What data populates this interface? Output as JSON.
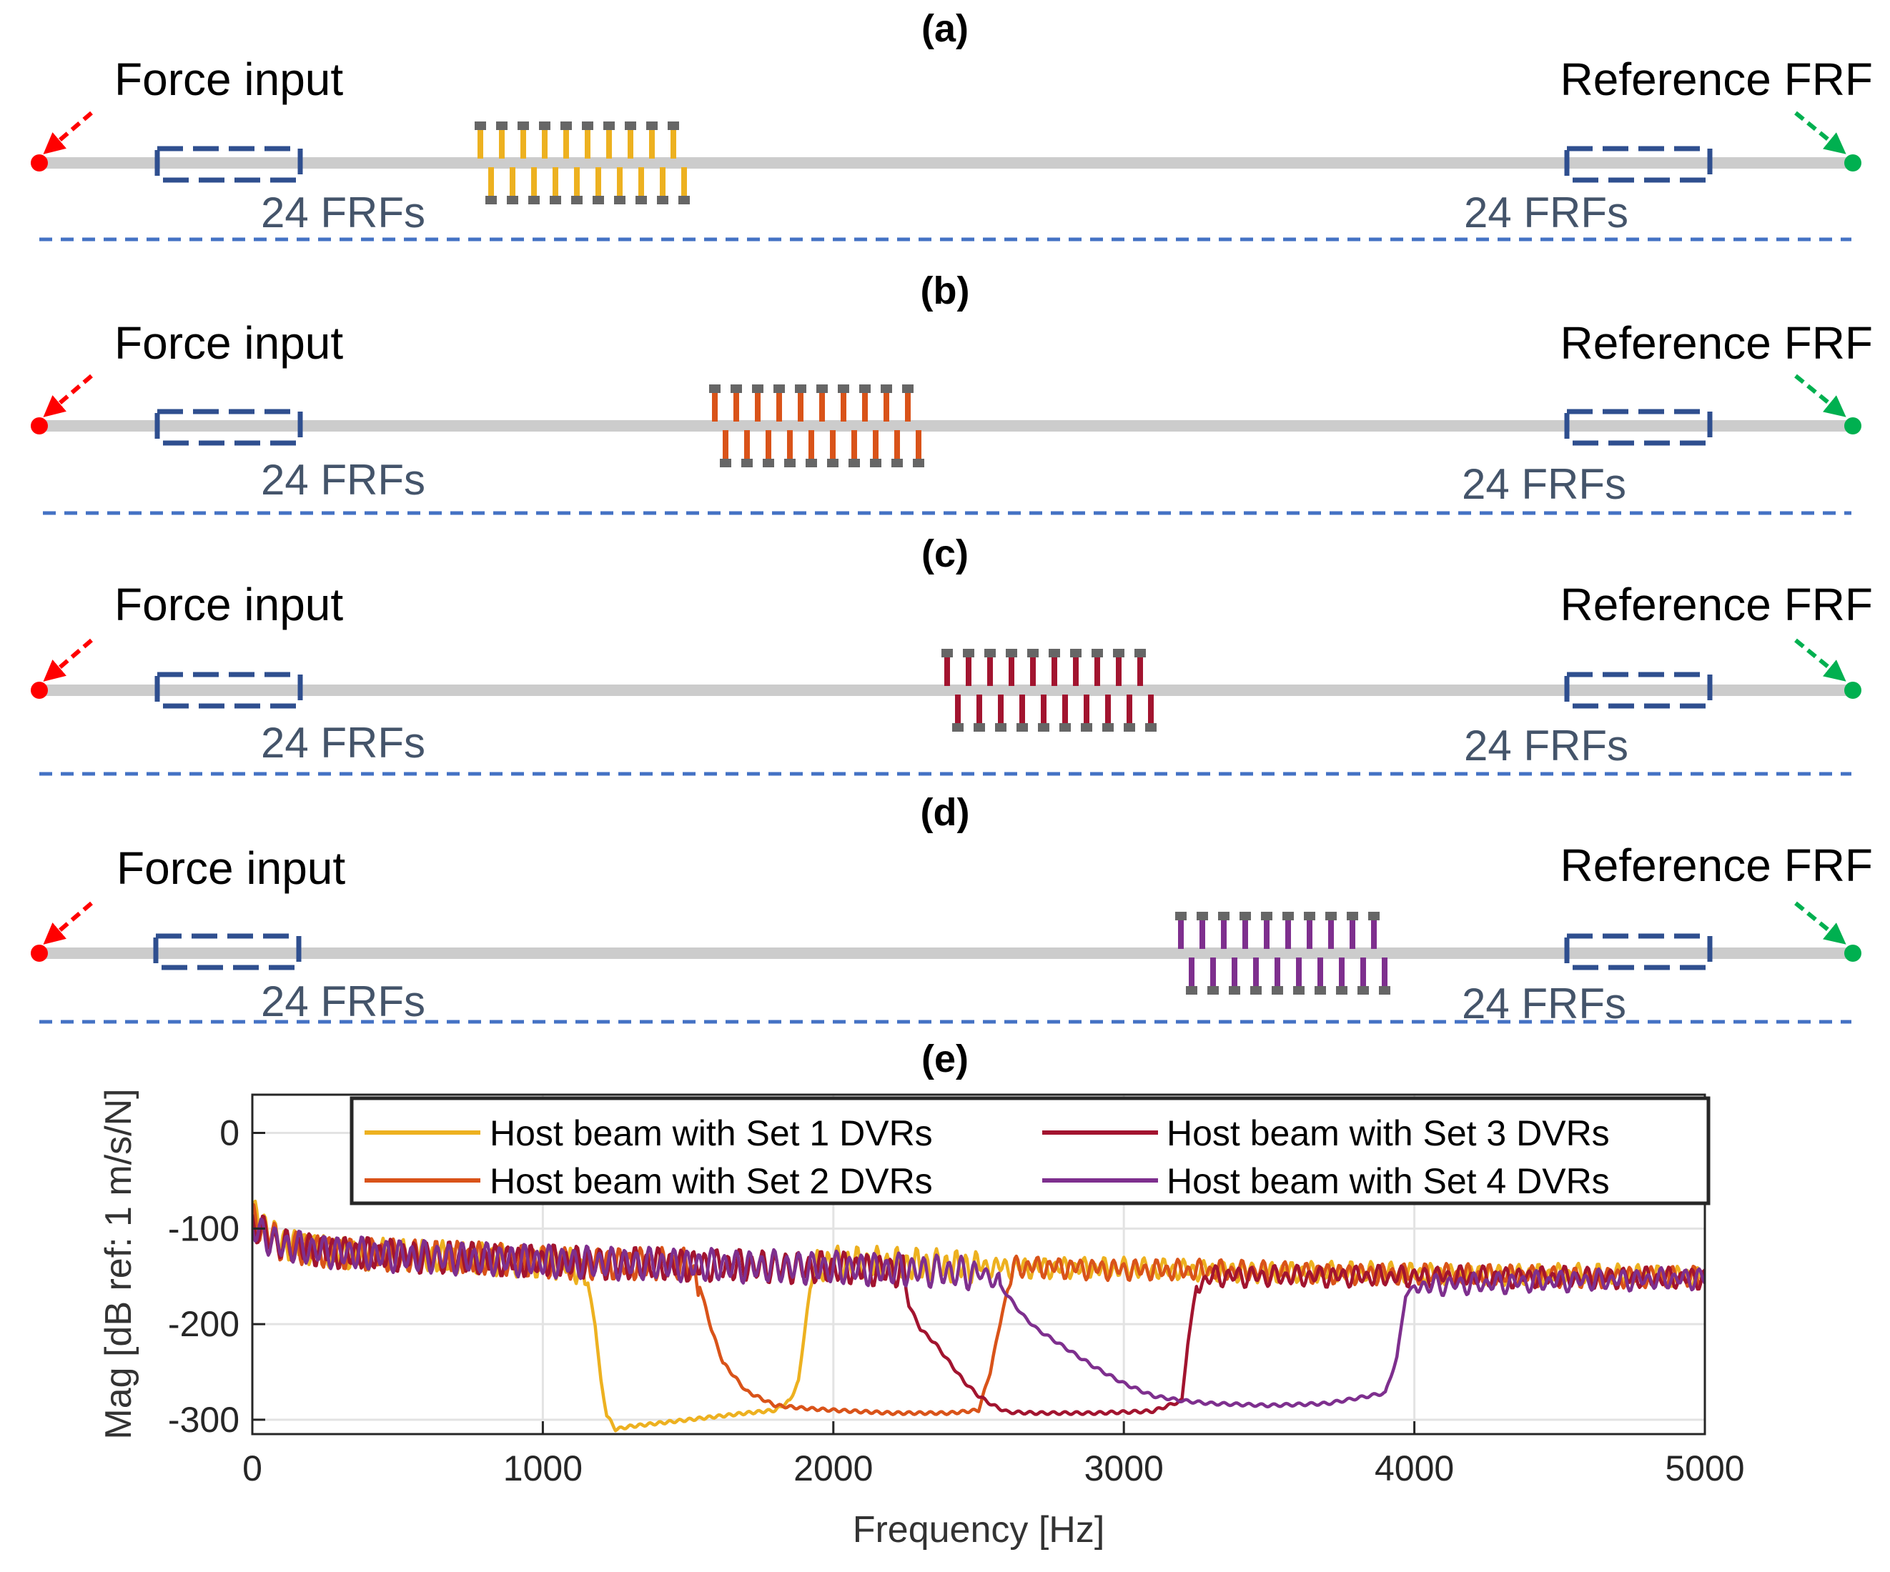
{
  "colors": {
    "set1": "#EDB120",
    "set2": "#D95319",
    "set3": "#A2142F",
    "set4": "#7E2F8E",
    "beam": "#cccccc",
    "force": "#ff0000",
    "reference": "#00b050",
    "frf_box": "#2f4f8f",
    "separator": "#4472c4",
    "pad": "#666666"
  },
  "panels": [
    {
      "label": "(a)",
      "force_label": "Force input",
      "reference_label": "Reference FRF",
      "frf_left": "24 FRFs",
      "frf_right": "24 FRFs",
      "dvr_set": 1,
      "dvr_count": 10
    },
    {
      "label": "(b)",
      "force_label": "Force input",
      "reference_label": "Reference FRF",
      "frf_left": "24 FRFs",
      "frf_right": "24 FRFs",
      "dvr_set": 2,
      "dvr_count": 10
    },
    {
      "label": "(c)",
      "force_label": "Force input",
      "reference_label": "Reference FRF",
      "frf_left": "24 FRFs",
      "frf_right": "24 FRFs",
      "dvr_set": 3,
      "dvr_count": 10
    },
    {
      "label": "(d)",
      "force_label": "Force input",
      "reference_label": "Reference FRF",
      "frf_left": "24 FRFs",
      "frf_right": "24 FRFs",
      "dvr_set": 4,
      "dvr_count": 10
    }
  ],
  "chart_panel_label": "(e)",
  "chart_data": {
    "type": "line",
    "title": "",
    "xlabel": "Frequency [Hz]",
    "ylabel": "Mag [dB ref: 1 m/s/N]",
    "xlim": [
      0,
      5000
    ],
    "ylim": [
      -315,
      40
    ],
    "xticks": [
      0,
      1000,
      2000,
      3000,
      4000,
      5000
    ],
    "yticks": [
      0,
      -100,
      -200,
      -300
    ],
    "grid": true,
    "legend_position": "top",
    "series": [
      {
        "name": "Host beam with Set 1 DVRs",
        "color": "#EDB120",
        "x": [
          0,
          100,
          300,
          600,
          900,
          1100,
          1150,
          1180,
          1200,
          1220,
          1250,
          1300,
          1500,
          1700,
          1800,
          1850,
          1880,
          1900,
          1930,
          2000,
          2500,
          3000,
          3500,
          4000,
          4500,
          5000
        ],
        "y": [
          -85,
          -115,
          -125,
          -130,
          -133,
          -136,
          -150,
          -200,
          -260,
          -295,
          -310,
          -307,
          -300,
          -293,
          -290,
          -280,
          -260,
          -210,
          -140,
          -135,
          -140,
          -142,
          -145,
          -147,
          -148,
          -150
        ]
      },
      {
        "name": "Host beam with Set 2 DVRs",
        "color": "#D95319",
        "x": [
          0,
          100,
          300,
          600,
          900,
          1200,
          1500,
          1540,
          1580,
          1620,
          1700,
          1800,
          1900,
          2000,
          2200,
          2400,
          2500,
          2540,
          2580,
          2620,
          2700,
          3000,
          3500,
          4000,
          4500,
          5000
        ],
        "y": [
          -90,
          -117,
          -125,
          -130,
          -133,
          -136,
          -138,
          -160,
          -205,
          -240,
          -270,
          -285,
          -288,
          -290,
          -293,
          -293,
          -290,
          -250,
          -190,
          -140,
          -140,
          -143,
          -145,
          -148,
          -150,
          -151
        ]
      },
      {
        "name": "Host beam with Set 3 DVRs",
        "color": "#A2142F",
        "x": [
          0,
          100,
          300,
          600,
          900,
          1200,
          1500,
          1800,
          2100,
          2240,
          2260,
          2300,
          2350,
          2400,
          2450,
          2500,
          2550,
          2600,
          2700,
          2900,
          3100,
          3200,
          3220,
          3250,
          3300,
          3500,
          4000,
          4500,
          5000
        ],
        "y": [
          -95,
          -118,
          -125,
          -130,
          -133,
          -136,
          -138,
          -140,
          -142,
          -145,
          -180,
          -205,
          -220,
          -240,
          -260,
          -275,
          -285,
          -292,
          -293,
          -293,
          -291,
          -280,
          -220,
          -160,
          -150,
          -150,
          -150,
          -151,
          -152
        ]
      },
      {
        "name": "Host beam with Set 4 DVRs",
        "color": "#7E2F8E",
        "x": [
          0,
          100,
          300,
          600,
          900,
          1200,
          1500,
          1800,
          2100,
          2400,
          2550,
          2600,
          2650,
          2700,
          2800,
          2900,
          3000,
          3100,
          3200,
          3300,
          3500,
          3700,
          3900,
          3940,
          3970,
          4000,
          4500,
          5000
        ],
        "y": [
          -100,
          -118,
          -125,
          -130,
          -133,
          -136,
          -138,
          -140,
          -142,
          -145,
          -150,
          -170,
          -190,
          -205,
          -225,
          -245,
          -262,
          -275,
          -280,
          -283,
          -285,
          -283,
          -272,
          -235,
          -170,
          -160,
          -155,
          -152
        ]
      }
    ]
  }
}
